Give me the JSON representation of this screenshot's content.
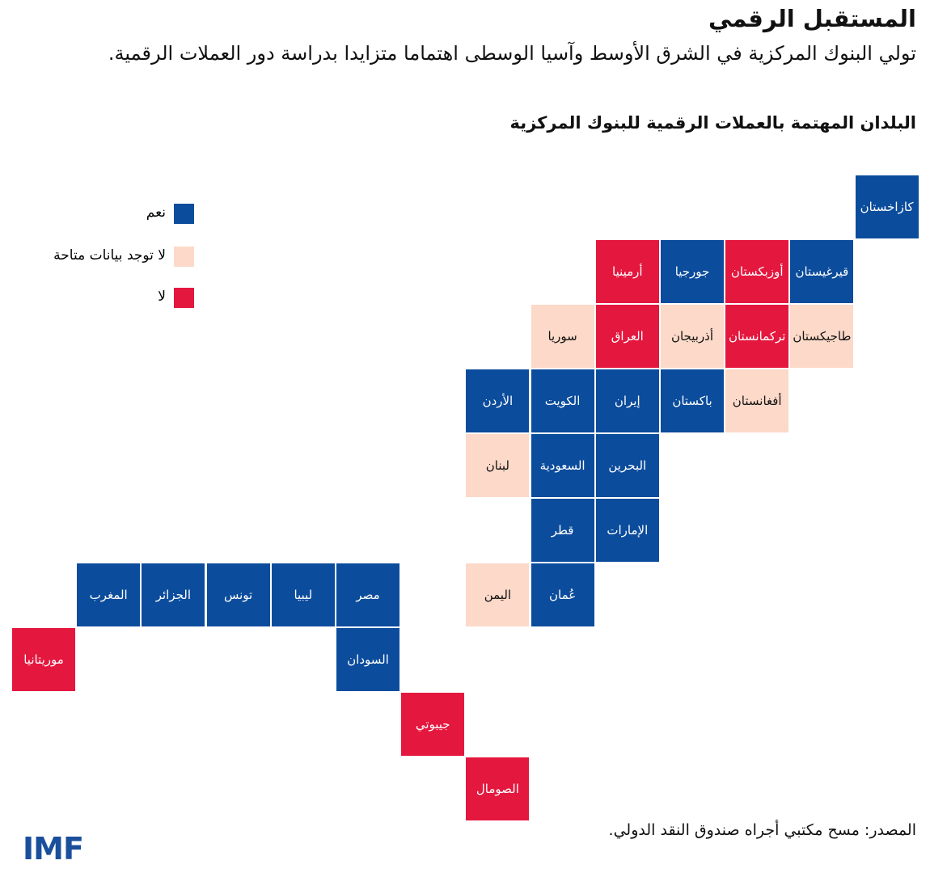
{
  "header": {
    "title": "المستقبل الرقمي",
    "subtitle": "تولي البنوك المركزية في الشرق الأوسط وآسيا الوسطى اهتماما متزايدا بدراسة دور العملات الرقمية.",
    "map_title": "البلدان المهتمة بالعملات الرقمية للبنوك المركزية"
  },
  "legend": [
    {
      "label": "نعم",
      "color": "#0b4c9c",
      "countries": [
        "كازاخستان",
        "جورجيا",
        "قيرغيستان",
        "الأردن",
        "الكويت",
        "إيران",
        "باكستان",
        "السعودية",
        "البحرين",
        "قطر",
        "الإمارات",
        "المغرب",
        "الجزائر",
        "تونس",
        "ليبيا",
        "مصر",
        "عُمان",
        "السودان"
      ]
    },
    {
      "label": "لا توجد بيانات متاحة",
      "color": "#fcd9c8",
      "countries": [
        "سوريا",
        "أذربيجان",
        "طاجيكستان",
        "أفغانستان",
        "لبنان",
        "اليمن"
      ]
    },
    {
      "label": "لا",
      "color": "#e4173e",
      "countries": [
        "أرمينيا",
        "أوزبكستان",
        "العراق",
        "تركمانستان",
        "موريتانيا",
        "جيبوتي",
        "الصومال"
      ]
    }
  ],
  "footer": {
    "source": "المصدر: مسح مكتبي أجراه صندوق النقد الدولي.",
    "logo": "IMF"
  }
}
